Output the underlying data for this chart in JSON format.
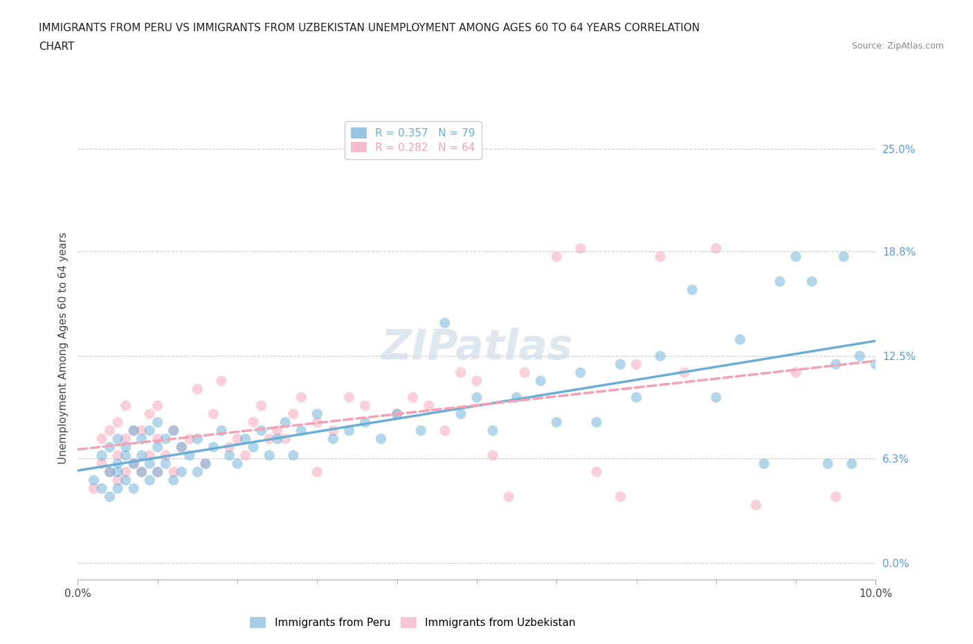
{
  "title_line1": "IMMIGRANTS FROM PERU VS IMMIGRANTS FROM UZBEKISTAN UNEMPLOYMENT AMONG AGES 60 TO 64 YEARS CORRELATION",
  "title_line2": "CHART",
  "source": "Source: ZipAtlas.com",
  "ylabel": "Unemployment Among Ages 60 to 64 years",
  "xlim": [
    0.0,
    0.1
  ],
  "ylim": [
    -0.01,
    0.27
  ],
  "ytick_labels": [
    "0.0%",
    "6.3%",
    "12.5%",
    "18.8%",
    "25.0%"
  ],
  "ytick_values": [
    0.0,
    0.063,
    0.125,
    0.188,
    0.25
  ],
  "R_peru": 0.357,
  "N_peru": 79,
  "R_uzbekistan": 0.282,
  "N_uzbekistan": 64,
  "color_peru": "#6aaed6",
  "color_uzbekistan": "#f4a0b5",
  "background_color": "#ffffff",
  "grid_color": "#cccccc",
  "axis_label_color": "#5b9bd5",
  "peru_scatter_x": [
    0.002,
    0.003,
    0.003,
    0.004,
    0.004,
    0.004,
    0.005,
    0.005,
    0.005,
    0.005,
    0.006,
    0.006,
    0.006,
    0.007,
    0.007,
    0.007,
    0.008,
    0.008,
    0.008,
    0.009,
    0.009,
    0.009,
    0.01,
    0.01,
    0.01,
    0.011,
    0.011,
    0.012,
    0.012,
    0.013,
    0.013,
    0.014,
    0.015,
    0.015,
    0.016,
    0.017,
    0.018,
    0.019,
    0.02,
    0.021,
    0.022,
    0.023,
    0.024,
    0.025,
    0.026,
    0.027,
    0.028,
    0.03,
    0.032,
    0.034,
    0.036,
    0.038,
    0.04,
    0.043,
    0.046,
    0.048,
    0.05,
    0.052,
    0.055,
    0.058,
    0.06,
    0.063,
    0.065,
    0.068,
    0.07,
    0.073,
    0.077,
    0.08,
    0.083,
    0.086,
    0.088,
    0.09,
    0.092,
    0.094,
    0.095,
    0.096,
    0.097,
    0.098,
    0.1
  ],
  "peru_scatter_y": [
    0.05,
    0.045,
    0.065,
    0.04,
    0.055,
    0.07,
    0.045,
    0.055,
    0.06,
    0.075,
    0.05,
    0.065,
    0.07,
    0.045,
    0.06,
    0.08,
    0.055,
    0.065,
    0.075,
    0.05,
    0.06,
    0.08,
    0.055,
    0.07,
    0.085,
    0.06,
    0.075,
    0.05,
    0.08,
    0.055,
    0.07,
    0.065,
    0.055,
    0.075,
    0.06,
    0.07,
    0.08,
    0.065,
    0.06,
    0.075,
    0.07,
    0.08,
    0.065,
    0.075,
    0.085,
    0.065,
    0.08,
    0.09,
    0.075,
    0.08,
    0.085,
    0.075,
    0.09,
    0.08,
    0.145,
    0.09,
    0.1,
    0.08,
    0.1,
    0.11,
    0.085,
    0.115,
    0.085,
    0.12,
    0.1,
    0.125,
    0.165,
    0.1,
    0.135,
    0.06,
    0.17,
    0.185,
    0.17,
    0.06,
    0.12,
    0.185,
    0.06,
    0.125,
    0.12
  ],
  "uzbekistan_scatter_x": [
    0.002,
    0.003,
    0.003,
    0.004,
    0.004,
    0.005,
    0.005,
    0.005,
    0.006,
    0.006,
    0.006,
    0.007,
    0.007,
    0.008,
    0.008,
    0.009,
    0.009,
    0.01,
    0.01,
    0.01,
    0.011,
    0.012,
    0.012,
    0.013,
    0.014,
    0.015,
    0.016,
    0.017,
    0.018,
    0.019,
    0.02,
    0.021,
    0.022,
    0.023,
    0.024,
    0.025,
    0.026,
    0.027,
    0.028,
    0.03,
    0.03,
    0.032,
    0.034,
    0.036,
    0.04,
    0.042,
    0.044,
    0.046,
    0.048,
    0.05,
    0.052,
    0.054,
    0.056,
    0.06,
    0.063,
    0.065,
    0.068,
    0.07,
    0.073,
    0.076,
    0.08,
    0.085,
    0.09,
    0.095
  ],
  "uzbekistan_scatter_y": [
    0.045,
    0.06,
    0.075,
    0.055,
    0.08,
    0.05,
    0.065,
    0.085,
    0.055,
    0.075,
    0.095,
    0.06,
    0.08,
    0.055,
    0.08,
    0.065,
    0.09,
    0.055,
    0.075,
    0.095,
    0.065,
    0.055,
    0.08,
    0.07,
    0.075,
    0.105,
    0.06,
    0.09,
    0.11,
    0.07,
    0.075,
    0.065,
    0.085,
    0.095,
    0.075,
    0.08,
    0.075,
    0.09,
    0.1,
    0.085,
    0.055,
    0.08,
    0.1,
    0.095,
    0.09,
    0.1,
    0.095,
    0.08,
    0.115,
    0.11,
    0.065,
    0.04,
    0.115,
    0.185,
    0.19,
    0.055,
    0.04,
    0.12,
    0.185,
    0.115,
    0.19,
    0.035,
    0.115,
    0.04
  ],
  "peru_line_x": [
    0.0,
    0.1
  ],
  "peru_line_y": [
    0.04,
    0.125
  ],
  "uzbek_line_x": [
    0.0,
    0.1
  ],
  "uzbek_line_y": [
    0.055,
    0.115
  ]
}
